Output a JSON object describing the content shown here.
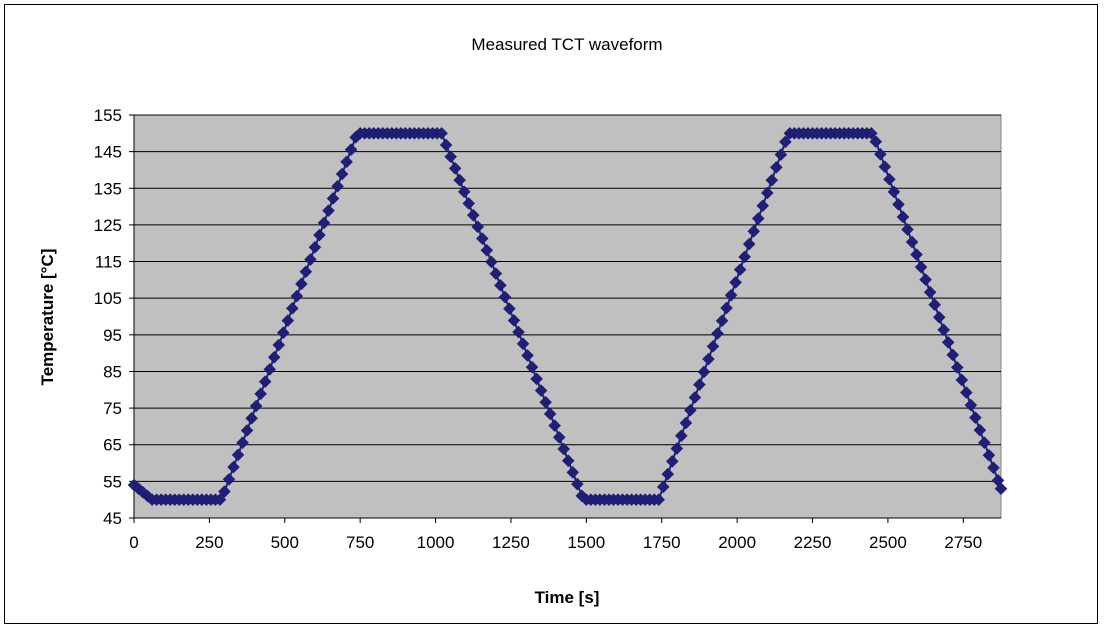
{
  "chart_data": {
    "type": "line",
    "title": "Measured TCT waveform",
    "xlabel": "Time [s]",
    "ylabel": "Temperature [°C]",
    "xlim": [
      0,
      2875
    ],
    "ylim": [
      45,
      155
    ],
    "xticks": [
      0,
      250,
      500,
      750,
      1000,
      1250,
      1500,
      1750,
      2000,
      2250,
      2500,
      2750
    ],
    "yticks": [
      45,
      55,
      65,
      75,
      85,
      95,
      105,
      115,
      125,
      135,
      145,
      155
    ],
    "grid": "horizontal",
    "legend": "none",
    "series_color": "#1f1f7a",
    "plot_background": "#c0c0c0",
    "marker": "diamond",
    "key_points": [
      {
        "x": 0,
        "y": 54
      },
      {
        "x": 60,
        "y": 50
      },
      {
        "x": 290,
        "y": 50
      },
      {
        "x": 740,
        "y": 150
      },
      {
        "x": 1020,
        "y": 150
      },
      {
        "x": 1490,
        "y": 50
      },
      {
        "x": 1740,
        "y": 50
      },
      {
        "x": 2170,
        "y": 150
      },
      {
        "x": 2450,
        "y": 150
      },
      {
        "x": 2875,
        "y": 53
      }
    ],
    "sample_interval": 15
  }
}
